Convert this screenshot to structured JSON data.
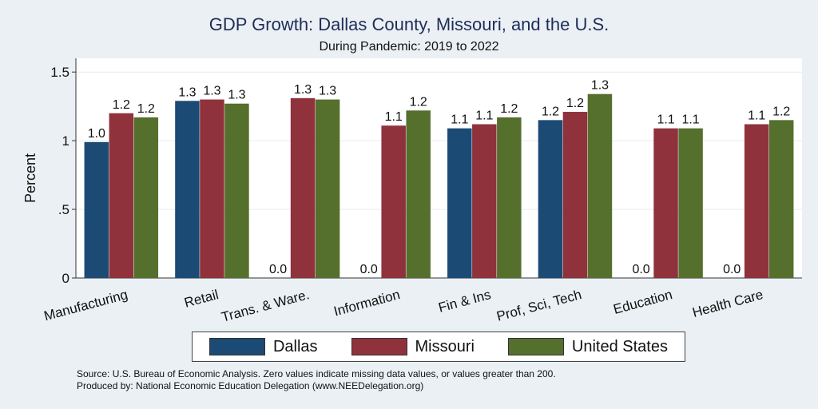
{
  "chart_data": {
    "type": "bar",
    "title": "GDP Growth: Dallas County, Missouri, and the U.S.",
    "subtitle": "During Pandemic: 2019 to 2022",
    "ylabel": "Percent",
    "xlabel": "",
    "ylim": [
      0,
      1.6
    ],
    "yticks": [
      0,
      0.5,
      1,
      1.5
    ],
    "ytick_labels": [
      "0",
      ".5",
      "1",
      "1.5"
    ],
    "grid": true,
    "legend_position": "bottom",
    "categories": [
      "Manufacturing",
      "Retail",
      "Trans. & Ware.",
      "Information",
      "Fin & Ins",
      "Prof, Sci, Tech",
      "Education",
      "Health Care"
    ],
    "series": [
      {
        "name": "Dallas",
        "color": "#1b4a74",
        "values": [
          0.99,
          1.29,
          0.0,
          0.0,
          1.09,
          1.15,
          0.0,
          0.0
        ],
        "labels": [
          "1.0",
          "1.3",
          "0.0",
          "0.0",
          "1.1",
          "1.2",
          "0.0",
          "0.0"
        ]
      },
      {
        "name": "Missouri",
        "color": "#8f323c",
        "values": [
          1.2,
          1.3,
          1.31,
          1.11,
          1.12,
          1.21,
          1.09,
          1.12
        ],
        "labels": [
          "1.2",
          "1.3",
          "1.3",
          "1.1",
          "1.1",
          "1.2",
          "1.1",
          "1.1"
        ]
      },
      {
        "name": "United States",
        "color": "#556f2d",
        "values": [
          1.17,
          1.27,
          1.3,
          1.22,
          1.17,
          1.34,
          1.09,
          1.15
        ],
        "labels": [
          "1.2",
          "1.3",
          "1.3",
          "1.2",
          "1.2",
          "1.3",
          "1.1",
          "1.2"
        ]
      }
    ]
  },
  "footer": {
    "source": "Source: U.S. Bureau of Economic Analysis. Zero values indicate missing data values, or values greater than 200.",
    "produced_by": "Produced by: National Economic Education Delegation (www.NEEDelegation.org)"
  }
}
